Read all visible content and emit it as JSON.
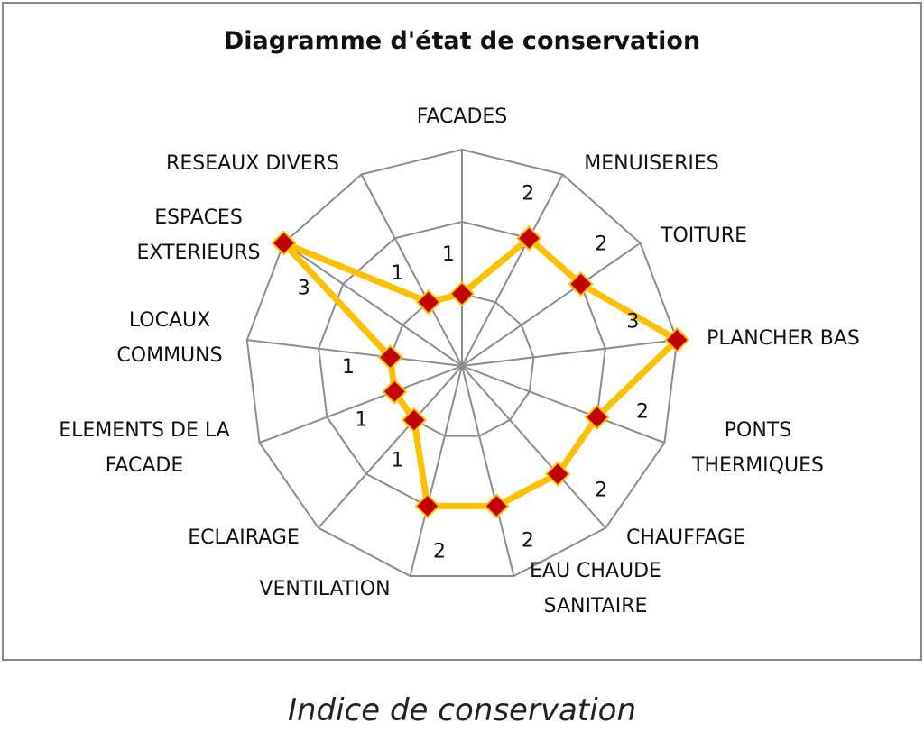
{
  "chart_data": {
    "type": "radar",
    "title": "Diagramme d'état de conservation",
    "caption": "Indice de conservation",
    "categories": [
      [
        "FACADES"
      ],
      [
        "MENUISERIES"
      ],
      [
        "TOITURE"
      ],
      [
        "PLANCHER BAS"
      ],
      [
        "PONTS",
        "THERMIQUES"
      ],
      [
        "CHAUFFAGE"
      ],
      [
        "EAU CHAUDE",
        "SANITAIRE"
      ],
      [
        "VENTILATION"
      ],
      [
        "ECLAIRAGE"
      ],
      [
        "ELEMENTS DE LA",
        "FACADE"
      ],
      [
        "LOCAUX",
        "COMMUNS"
      ],
      [
        "ESPACES",
        "EXTERIEURS"
      ],
      [
        "RESEAUX DIVERS"
      ]
    ],
    "values": [
      1,
      2,
      2,
      3,
      2,
      2,
      2,
      2,
      1,
      1,
      1,
      3,
      1
    ],
    "rlim": [
      0,
      3
    ],
    "ring_step": 1,
    "data_labels": true,
    "grid": true,
    "colors": {
      "line": "#FFC000",
      "marker": "#C00000",
      "grid": "#8C8C8C"
    }
  }
}
